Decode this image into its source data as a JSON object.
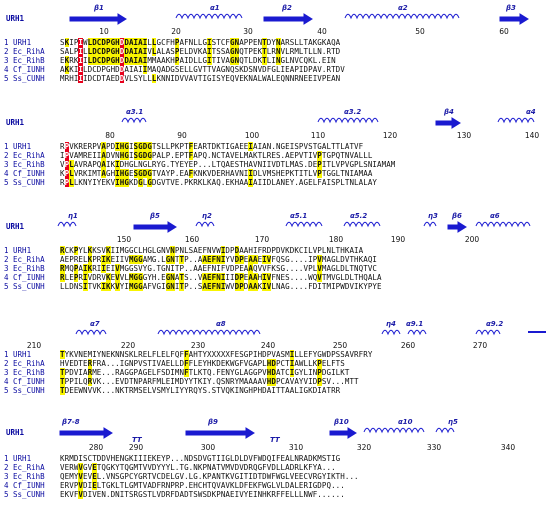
{
  "blocks": [
    {
      "ref_label": "URH1",
      "ss_labels": [
        "β1",
        "α1",
        "β2",
        "α2",
        "β3"
      ],
      "ticks": [
        "10",
        "20",
        "30",
        "40",
        "50",
        "60"
      ],
      "rows": [
        {
          "label": "1 URH1",
          "seq": "SKIPIWLDCDPGHDDAIAILLGCFHPAFNLLGISTCFGNAPPENTDYNARSLLTAKGKAQA"
        },
        {
          "label": "2 Ec_RihA",
          "seq": "SALPILLDCDPGHDDAIAIVLALASPELDVKAITSSAGNQTPEKTLRNVLRMLTLLN.RTD"
        },
        {
          "label": "3 Ec_RihB",
          "seq": "EKRKIILDCDPGHDDAIAIMMAAKHPAIDLLGITIVAGNQTLDKTLINGLNVCQKL.EIN"
        },
        {
          "label": "4 Cf_IUNH",
          "seq": "AKKIILDCDPGHDDAIAIIMAQADGSELLGVTTVAGNQSKDSNVDFGLIEAPIDPAV.RTDV"
        },
        {
          "label": "5 Ss_CUNH",
          "seq": "MRHIIIDCDTAEDDVLSYLLLKNNIDVVAVTIGISYEQVEKNALWALEQNNRNEEIVPEAN"
        }
      ]
    },
    {
      "ref_label": "URH1",
      "ss_labels": [
        "α3.1",
        "α3.2",
        "β4",
        "α4"
      ],
      "ticks": [
        "80",
        "90",
        "100",
        "110",
        "120",
        "130",
        "140"
      ],
      "rows": [
        {
          "label": "1 URH1",
          "seq": "RPVKRERPVAPDIHGISGDGTSLLPKPTFEARTDKTIGAEEIAIAN.NGEISPVSTGALTTLATVF"
        },
        {
          "label": "2 Ec_RihA",
          "seq": "IPVAMREIIADVNHGISGDGPALP.EPTFAPQ.NCTAVELMAKTLRES.AEPVTIVPTGPQTNVALLL"
        },
        {
          "label": "3 Ec_RihB",
          "seq": "VPLAVRAPQAIKIDHGLNGLRYG.TYEYEP...LTQAESTHAVNIIVDTLMAS.DEPITLVPVGPLSNIAMAM"
        },
        {
          "label": "4 Cf_IUNH",
          "seq": "KPLVRKIMTAGHIHGESGDGTVAYP.EAFKNKVDERHAVNIIDLVMSHEPKTITLVPTGGLTNIAMAA"
        },
        {
          "label": "5 Ss_CUNH",
          "seq": "RPLLKNYIYEKVIHGKDGLGDGVTVE.PKRKLKAQ.EKHAAIAIIDLANEY.AGELFAISPLTNLALAY"
        }
      ]
    },
    {
      "ref_label": "URH1",
      "ss_labels": [
        "η1",
        "β5",
        "η2",
        "α5.1",
        "α5.2",
        "η3",
        "β6",
        "α6"
      ],
      "ticks": [
        "150",
        "160",
        "170",
        "180",
        "190",
        "200"
      ],
      "rows": [
        {
          "label": "1 URH1",
          "seq": "RCKPYLKKSVKIIMGGCLHGLGNVNPNLSAEFNVWIDPDAAHIFRDPDVKDKCILVPLNLTHKAIA"
        },
        {
          "label": "2 Ec_RihA",
          "seq": "AEPRELKPRIKEIIVMGGAMG.LGNTTP..AAEFNIYVDPEAAEIVFQSG....IPVMAGLDVTHKAQI"
        },
        {
          "label": "3 Ec_RihB",
          "seq": "RMQPAIKRIIEIVMGGSVYG.TGNITP..AAEFNIFVDPEAAQVVFKSG....VPLVMAGLDLTNQTVC"
        },
        {
          "label": "4 Cf_IUNH",
          "seq": "RLEPRIVDRVKEVVLMGGGYH.EGNATS..VAEFNIIIDPEAAHIVFNES....WQVTMVGLDLTHQALA"
        },
        {
          "label": "5 Ss_CUNH",
          "seq": "LLDNSITVKIKKVYIMGGAFVGIGNITP..SAEFNIWVDPDAAKIVLNAG....FDITMIPWDVIKYPYE"
        }
      ]
    },
    {
      "ref_label": "URH1",
      "ss_labels": [
        "α7",
        "α8",
        "η4",
        "α9.1",
        "α9.2"
      ],
      "ticks": [
        "210",
        "220",
        "230",
        "240",
        "250",
        "260",
        "270"
      ],
      "rows": [
        {
          "label": "1 URH1",
          "seq": "TYKVNEMIYNEKNNSKLRELFLELFQFFAHTYXXXXXFESGPIHDPVASMILLEFYGWDPSSAVRFRY"
        },
        {
          "label": "2 Ec_RihA",
          "seq": "HVEDTERFRA...IGNPVSTIVAELLDFFLEYHKDEKWGFVGAPLHDPCTIAWLLKPELFTS"
        },
        {
          "label": "3 Ec_RihB",
          "seq": "TPDVIARME...RAGGPAGELFSDIMNFTLKTQ.FENYGLAGGPVHDATCIGYLINPDGILKT"
        },
        {
          "label": "4 Cf_IUNH",
          "seq": "TPPILQRVK...EVDTNPARFMLEIMDYYTKIY.QSNRYMAAAAVHDPCAVAYVIDPSV...MTT"
        },
        {
          "label": "5 Ss_CUNH",
          "seq": "TDEEWNVVK...NKTRMSELVSMYLIYYRQYS.STVQKINGHPHDAITTAALIGKDIATRR"
        }
      ]
    },
    {
      "ref_label": "URH1",
      "ss_labels": [
        "β7-8",
        "TT",
        "β9",
        "TT",
        "β10",
        "α10",
        "η5"
      ],
      "ticks": [
        "280",
        "290",
        "300",
        "310",
        "320",
        "330",
        "340"
      ],
      "rows": [
        {
          "label": "1 URH1",
          "seq": "KRMDISCTDDVHENGKIIIEKEYP...NDSDVGTIIGLDLDVFWDQIFEALNRADKMSTIG"
        },
        {
          "label": "2 Ec_RihA",
          "seq": "VERWVGVETQGKYTQGMTVVDYYYL.TG.NKPNATVMVDVDRQGFVDLLADRLKFYA..."
        },
        {
          "label": "3 Ec_RihB",
          "seq": "QEMYVEVEL.VNSGPCYGRTVCDELGV.LG.KPANTKVGITIDTDWFWGLVEECVRGYIKTH..."
        },
        {
          "label": "4 Cf_IUNH",
          "seq": "ERVPVDIELTGKLTLGMTVADFRNPRP.EHCHTQVAVKLDFEKFWGLVLDALERIGDPQ..."
        },
        {
          "label": "5 Ss_CUNH",
          "seq": "EKVFVDIVEN.DNITSRGSTLVDRFDADTSWSDKPNAEIVYEINHKRFFELLLNWF......"
        }
      ]
    }
  ]
}
